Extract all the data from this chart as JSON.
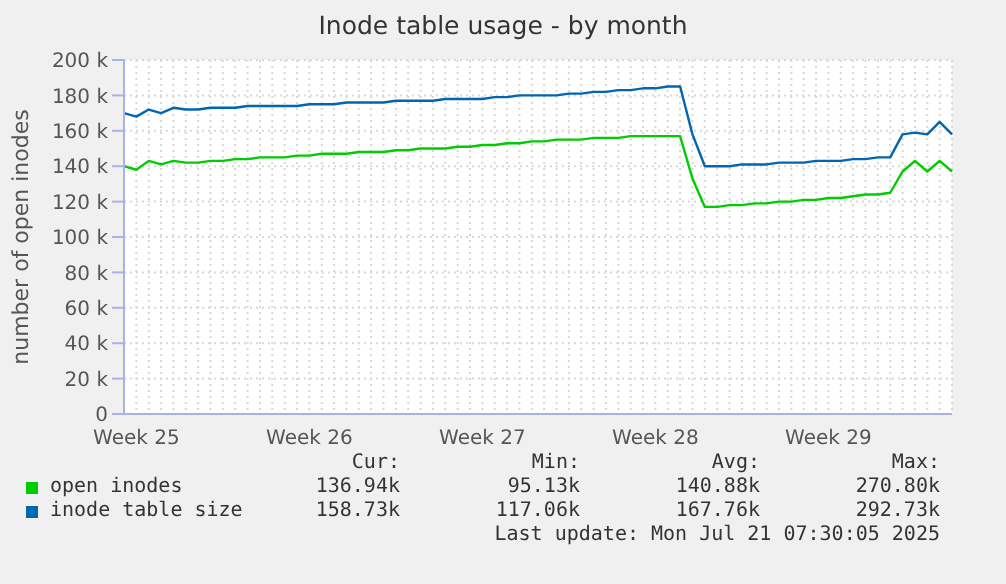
{
  "chart_data": {
    "type": "line",
    "title": "Inode table usage - by month",
    "ylabel": "number of open inodes",
    "categories": [
      null,
      "Week 25",
      null,
      null,
      null,
      null,
      null,
      null,
      null,
      null,
      null,
      null,
      null,
      null,
      null,
      "Week 26",
      null,
      null,
      null,
      null,
      null,
      null,
      null,
      null,
      null,
      null,
      null,
      null,
      null,
      "Week 27",
      null,
      null,
      null,
      null,
      null,
      null,
      null,
      null,
      null,
      null,
      null,
      null,
      null,
      "Week 28",
      null,
      null,
      null,
      null,
      null,
      null,
      null,
      null,
      null,
      null,
      null,
      null,
      null,
      "Week 29",
      null,
      null,
      null,
      null,
      null,
      null,
      null,
      null,
      null,
      null
    ],
    "ylim": [
      0,
      200000
    ],
    "yticks": [
      0,
      {
        "value": 20000,
        "label": "20 k"
      },
      {
        "value": 40000,
        "label": "40 k"
      },
      {
        "value": 60000,
        "label": "60 k"
      },
      {
        "value": 80000,
        "label": "80 k"
      },
      {
        "value": 100000,
        "label": "100 k"
      },
      {
        "value": 120000,
        "label": "120 k"
      },
      {
        "value": 140000,
        "label": "140 k"
      },
      {
        "value": 160000,
        "label": "160 k"
      },
      {
        "value": 180000,
        "label": "180 k"
      },
      {
        "value": 200000,
        "label": "200 k"
      }
    ],
    "grid": true,
    "legend": "bottom",
    "series": [
      {
        "name": "open inodes",
        "color": "#00cc00",
        "values": [
          140000,
          138000,
          143000,
          141000,
          143000,
          142000,
          142000,
          143000,
          143000,
          144000,
          144000,
          145000,
          145000,
          145000,
          146000,
          146000,
          147000,
          147000,
          147000,
          148000,
          148000,
          148000,
          149000,
          149000,
          150000,
          150000,
          150000,
          151000,
          151000,
          152000,
          152000,
          153000,
          153000,
          154000,
          154000,
          155000,
          155000,
          155000,
          156000,
          156000,
          156000,
          157000,
          157000,
          157000,
          157000,
          157000,
          133000,
          117000,
          117000,
          118000,
          118000,
          119000,
          119000,
          120000,
          120000,
          121000,
          121000,
          122000,
          122000,
          123000,
          124000,
          124000,
          125000,
          137000,
          143000,
          137000,
          143000,
          137000
        ]
      },
      {
        "name": "inode table size",
        "color": "#0066b3",
        "values": [
          170000,
          168000,
          172000,
          170000,
          173000,
          172000,
          172000,
          173000,
          173000,
          173000,
          174000,
          174000,
          174000,
          174000,
          174000,
          175000,
          175000,
          175000,
          176000,
          176000,
          176000,
          176000,
          177000,
          177000,
          177000,
          177000,
          178000,
          178000,
          178000,
          178000,
          179000,
          179000,
          180000,
          180000,
          180000,
          180000,
          181000,
          181000,
          182000,
          182000,
          183000,
          183000,
          184000,
          184000,
          185000,
          185000,
          158000,
          140000,
          140000,
          140000,
          141000,
          141000,
          141000,
          142000,
          142000,
          142000,
          143000,
          143000,
          143000,
          144000,
          144000,
          145000,
          145000,
          158000,
          159000,
          158000,
          165000,
          158000
        ]
      }
    ],
    "annotations": [
      "Cur:",
      "Min:",
      "Avg:",
      "Max:",
      "136.94k",
      "95.13k",
      "140.88k",
      "270.80k",
      "158.73k",
      "117.06k",
      "167.76k",
      "292.73k",
      "Last update: Mon Jul 21 07:30:05 2025"
    ]
  }
}
